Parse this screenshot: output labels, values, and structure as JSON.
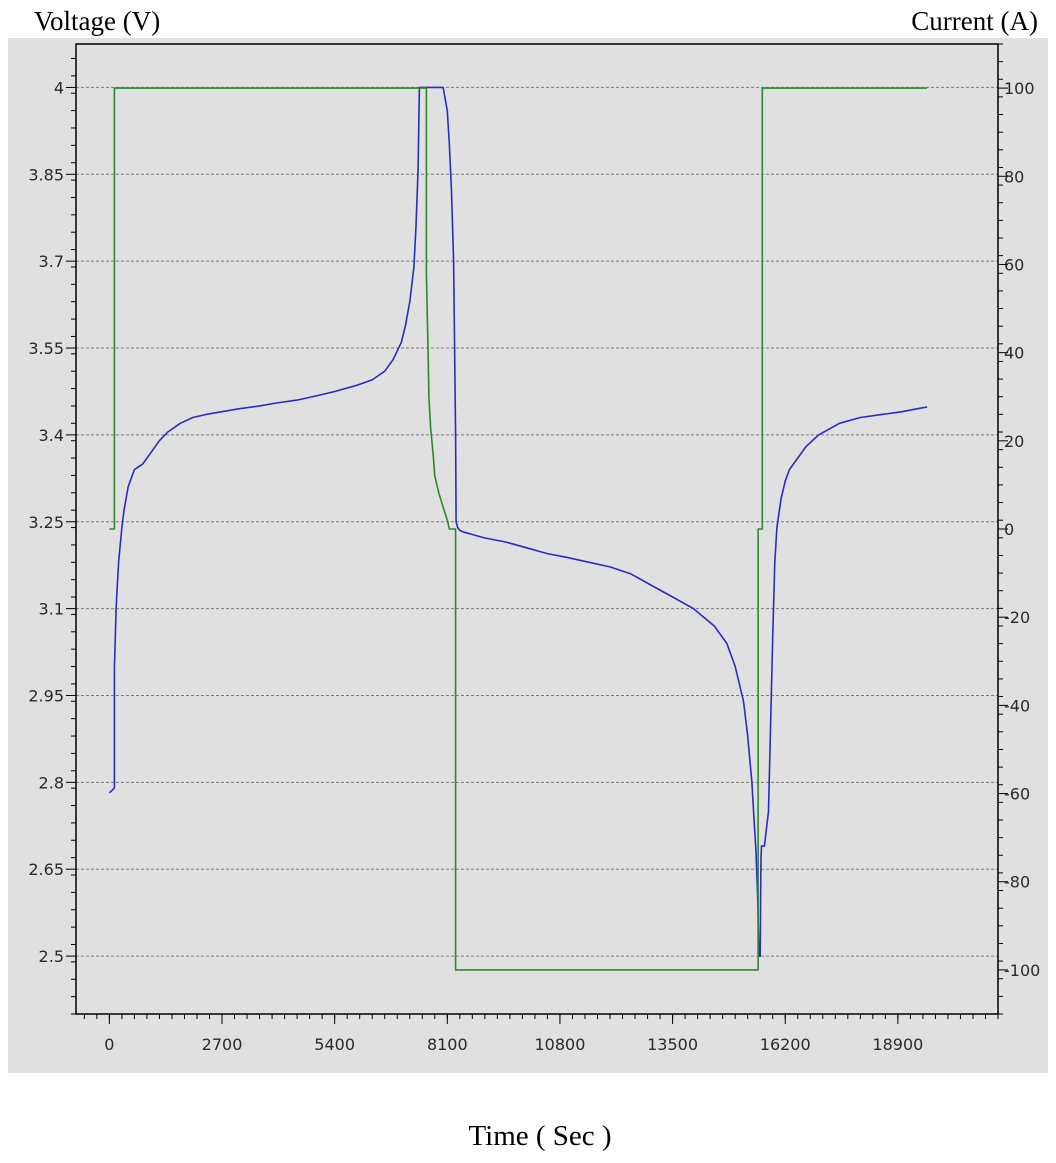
{
  "chart_data": {
    "type": "line",
    "title": "",
    "xlabel": "Time ( Sec )",
    "ylabel_left": "Voltage (V)",
    "ylabel_right": "Current (A)",
    "xlim": [
      -800,
      21300
    ],
    "ylim_left": [
      2.4,
      4.075
    ],
    "ylim_right": [
      -110,
      110
    ],
    "x_ticks": [
      0,
      2700,
      5400,
      8100,
      10800,
      13500,
      16200,
      18900
    ],
    "y_left_ticks": [
      "2.5",
      "2.65",
      "2.8",
      "2.95",
      "3.1",
      "3.25",
      "3.4",
      "3.55",
      "3.7",
      "3.85",
      "4"
    ],
    "y_right_ticks": [
      "-100",
      "-80",
      "-60",
      "-40",
      "-20",
      "0",
      "20",
      "40",
      "60",
      "80",
      "100"
    ],
    "grid": true,
    "legend": "none",
    "colors": {
      "voltage": "#2b2bbf",
      "current": "#2a8a2a",
      "plot_bg": "#e0e0e0",
      "grid": "#7a7a7a"
    },
    "series": [
      {
        "axis": "left",
        "x": [
          0,
          120,
          120,
          130,
          160,
          190,
          220,
          260,
          300,
          350,
          400,
          450,
          500,
          550,
          600,
          700,
          800,
          1000,
          1200,
          1400,
          1700,
          2000,
          2300,
          2700,
          3100,
          3600,
          4000,
          4500,
          5000,
          5400,
          5900,
          6300,
          6600,
          6800,
          7000,
          7100,
          7200,
          7300,
          7350,
          7400,
          7420,
          7430,
          7460,
          7480,
          7500,
          7550,
          7600,
          7700,
          7800,
          7900,
          8000,
          8100,
          8150,
          8200,
          8250,
          8300,
          8310,
          8350,
          8400,
          8500,
          8700,
          9000,
          9500,
          10000,
          10500,
          11000,
          11500,
          12000,
          12500,
          13000,
          13500,
          14000,
          14500,
          14800,
          15000,
          15200,
          15300,
          15400,
          15450,
          15500,
          15540,
          15570,
          15600,
          15610,
          15620,
          15630,
          15700,
          15800,
          15850,
          15900,
          15950,
          16000,
          16100,
          16200,
          16300,
          16500,
          16700,
          17000,
          17500,
          18000,
          18500,
          19000,
          19500,
          19600
        ],
        "y": [
          2.782,
          2.79,
          3.0,
          3.02,
          3.1,
          3.14,
          3.18,
          3.21,
          3.24,
          3.27,
          3.29,
          3.31,
          3.32,
          3.33,
          3.34,
          3.345,
          3.35,
          3.37,
          3.39,
          3.405,
          3.42,
          3.43,
          3.435,
          3.44,
          3.445,
          3.45,
          3.455,
          3.46,
          3.468,
          3.475,
          3.485,
          3.495,
          3.51,
          3.53,
          3.56,
          3.59,
          3.63,
          3.69,
          3.76,
          3.86,
          3.95,
          4.0,
          4.0,
          4.0,
          4.0,
          4.0,
          4.0,
          4.0,
          4.0,
          4.0,
          4.0,
          3.96,
          3.9,
          3.82,
          3.7,
          3.4,
          3.25,
          3.24,
          3.235,
          3.232,
          3.228,
          3.222,
          3.215,
          3.205,
          3.195,
          3.188,
          3.18,
          3.172,
          3.16,
          3.14,
          3.12,
          3.1,
          3.07,
          3.04,
          3.0,
          2.94,
          2.88,
          2.8,
          2.74,
          2.68,
          2.6,
          2.5,
          2.5,
          2.6,
          2.67,
          2.69,
          2.69,
          2.75,
          2.9,
          3.05,
          3.18,
          3.24,
          3.29,
          3.32,
          3.34,
          3.36,
          3.38,
          3.4,
          3.42,
          3.43,
          3.435,
          3.44,
          3.447,
          3.448
        ]
      },
      {
        "axis": "right",
        "x": [
          0,
          120,
          120,
          7600,
          7600,
          7640,
          7660,
          7700,
          7760,
          7800,
          7900,
          8000,
          8100,
          8150,
          8150,
          8300,
          8300,
          15550,
          15550,
          15650,
          15650,
          19600
        ],
        "y": [
          0,
          0,
          100,
          100,
          58,
          40,
          30,
          23,
          17,
          12,
          8,
          5,
          2,
          0,
          0,
          0,
          -100,
          -100,
          0,
          0,
          100,
          100
        ]
      }
    ]
  }
}
